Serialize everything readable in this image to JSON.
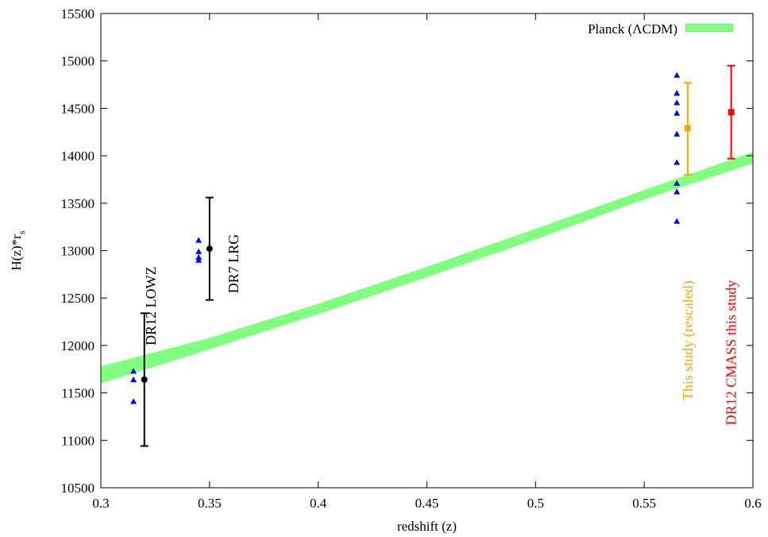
{
  "chart_data": {
    "type": "scatter",
    "xlabel": "redshift (z)",
    "ylabel_main": "H(z)*r",
    "ylabel_sub": "s",
    "xlim": [
      0.3,
      0.6
    ],
    "ylim": [
      10500,
      15500
    ],
    "x_ticks": [
      "0.3",
      "0.35",
      "0.4",
      "0.45",
      "0.5",
      "0.55",
      "0.6"
    ],
    "y_ticks": [
      "10500",
      "11000",
      "11500",
      "12000",
      "12500",
      "13000",
      "13500",
      "14000",
      "14500",
      "15000",
      "15500"
    ],
    "grid": false,
    "legend": {
      "position": "top-right",
      "entries": [
        {
          "label": "Planck (ΛCDM)",
          "color": "#80ff80"
        }
      ]
    },
    "band": {
      "name": "Planck (ΛCDM)",
      "color": "#80ff80",
      "x": [
        0.3,
        0.35,
        0.4,
        0.45,
        0.5,
        0.55,
        0.6
      ],
      "lower": [
        11600,
        11960,
        12330,
        12720,
        13120,
        13540,
        13920
      ],
      "upper": [
        11780,
        12080,
        12440,
        12830,
        13230,
        13640,
        14040
      ]
    },
    "triangles": {
      "color": "#0000ff",
      "points": [
        {
          "x": 0.315,
          "y": 11730
        },
        {
          "x": 0.315,
          "y": 11640
        },
        {
          "x": 0.315,
          "y": 11410
        },
        {
          "x": 0.345,
          "y": 13110
        },
        {
          "x": 0.345,
          "y": 12990
        },
        {
          "x": 0.345,
          "y": 12930
        },
        {
          "x": 0.345,
          "y": 12900
        },
        {
          "x": 0.565,
          "y": 14850
        },
        {
          "x": 0.565,
          "y": 14660
        },
        {
          "x": 0.565,
          "y": 14560
        },
        {
          "x": 0.565,
          "y": 14450
        },
        {
          "x": 0.565,
          "y": 14230
        },
        {
          "x": 0.565,
          "y": 13930
        },
        {
          "x": 0.565,
          "y": 13710
        },
        {
          "x": 0.565,
          "y": 13620
        },
        {
          "x": 0.565,
          "y": 13310
        }
      ]
    },
    "errorbars": [
      {
        "name": "DR12 LOWZ",
        "x": 0.32,
        "y": 11640,
        "ylow": 10940,
        "yhigh": 12340,
        "color": "#000000",
        "marker": "circle"
      },
      {
        "name": "DR7 LRG",
        "x": 0.35,
        "y": 13020,
        "ylow": 12480,
        "yhigh": 13560,
        "color": "#000000",
        "marker": "circle"
      },
      {
        "name": "This study (rescaled)",
        "x": 0.57,
        "y": 14290,
        "ylow": 13800,
        "yhigh": 14770,
        "color": "#ffa500",
        "marker": "square"
      },
      {
        "name": "DR12 CMASS this study",
        "x": 0.59,
        "y": 14460,
        "ylow": 13970,
        "yhigh": 14950,
        "color": "#ff0000",
        "marker": "square"
      }
    ],
    "annotations": [
      {
        "text": "DR12 LOWZ",
        "x": 0.323,
        "y": 12000,
        "color": "#000000"
      },
      {
        "text": "DR7 LRG",
        "x": 0.361,
        "y": 12550,
        "color": "#000000"
      },
      {
        "text": "This study (rescaled)",
        "x": 0.57,
        "y": 11420,
        "color": "#ffa500"
      },
      {
        "text": "DR12 CMASS this study",
        "x": 0.59,
        "y": 11160,
        "color": "#ff0000"
      }
    ]
  }
}
